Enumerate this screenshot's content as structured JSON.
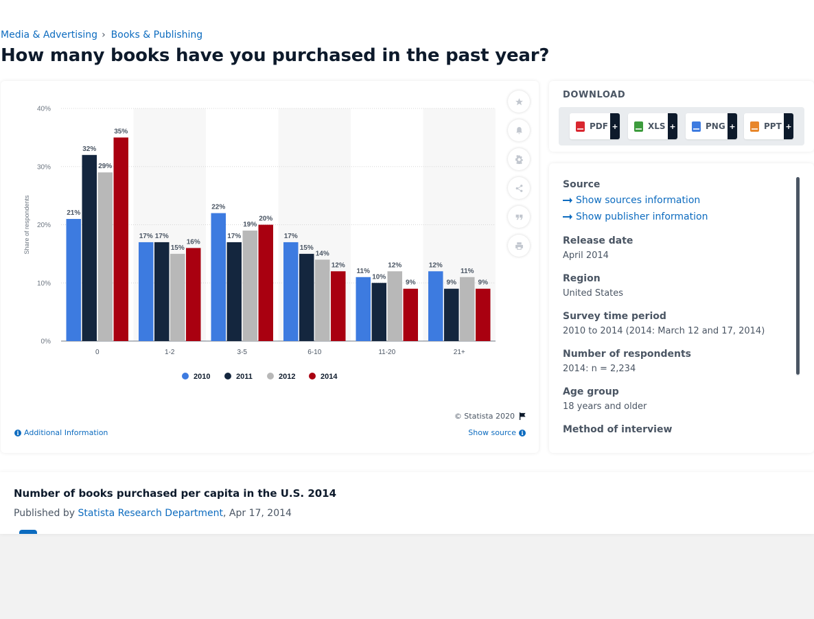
{
  "breadcrumb": {
    "items": [
      "Media & Advertising",
      "Books & Publishing"
    ],
    "separator": "›"
  },
  "page": {
    "title": "How many books have you purchased in the past year?"
  },
  "chart_data": {
    "type": "bar",
    "title": "",
    "xlabel": "",
    "ylabel": "Share of respondents",
    "ylim": [
      0,
      40
    ],
    "yticks": [
      "0%",
      "10%",
      "20%",
      "30%",
      "40%"
    ],
    "grid": true,
    "legend_position": "bottom",
    "categories": [
      "0",
      "1-2",
      "3-5",
      "6-10",
      "11-20",
      "21+"
    ],
    "series": [
      {
        "name": "2010",
        "color": "#3d7be0",
        "values": [
          21,
          17,
          22,
          17,
          11,
          12
        ],
        "labels": [
          "21%",
          "17%",
          "22%",
          "17%",
          "11%",
          "12%"
        ]
      },
      {
        "name": "2011",
        "color": "#14263e",
        "values": [
          32,
          17,
          17,
          15,
          10,
          9
        ],
        "labels": [
          "32%",
          "17%",
          "17%",
          "15%",
          "10%",
          "9%"
        ]
      },
      {
        "name": "2012",
        "color": "#b8b8b8",
        "values": [
          29,
          15,
          19,
          14,
          12,
          11
        ],
        "labels": [
          "29%",
          "15%",
          "19%",
          "14%",
          "12%",
          "11%"
        ]
      },
      {
        "name": "2014",
        "color": "#a90010",
        "values": [
          35,
          16,
          20,
          12,
          9,
          9
        ],
        "labels": [
          "35%",
          "16%",
          "20%",
          "12%",
          "9%",
          "9%"
        ]
      }
    ]
  },
  "chart_footer": {
    "copyright": "© Statista 2020",
    "additional_info": "Additional Information",
    "show_source": "Show source"
  },
  "tools": [
    "star-icon",
    "bell-icon",
    "gear-icon",
    "share-icon",
    "quote-icon",
    "print-icon"
  ],
  "download": {
    "title": "DOWNLOAD",
    "buttons": [
      {
        "label": "PDF",
        "color": "#d9262f",
        "plus": "+"
      },
      {
        "label": "XLS",
        "color": "#3c9b3c",
        "plus": "+"
      },
      {
        "label": "PNG",
        "color": "#3d7be0",
        "plus": "+"
      },
      {
        "label": "PPT",
        "color": "#e8862a",
        "plus": "+"
      }
    ]
  },
  "source": {
    "source_heading": "Source",
    "show_sources": "Show sources information",
    "show_publisher": "Show publisher information",
    "release_heading": "Release date",
    "release_value": "April 2014",
    "region_heading": "Region",
    "region_value": "United States",
    "survey_heading": "Survey time period",
    "survey_value": "2010 to 2014 (2014: March 12 and 17, 2014)",
    "respondents_heading": "Number of respondents",
    "respondents_value": "2014: n = 2,234",
    "age_heading": "Age group",
    "age_value": "18 years and older",
    "method_heading": "Method of interview"
  },
  "related": {
    "title": "Number of books purchased per capita in the U.S. 2014",
    "published_by": "Published by",
    "publisher": "Statista Research Department",
    "date": ", Apr 17, 2014"
  }
}
